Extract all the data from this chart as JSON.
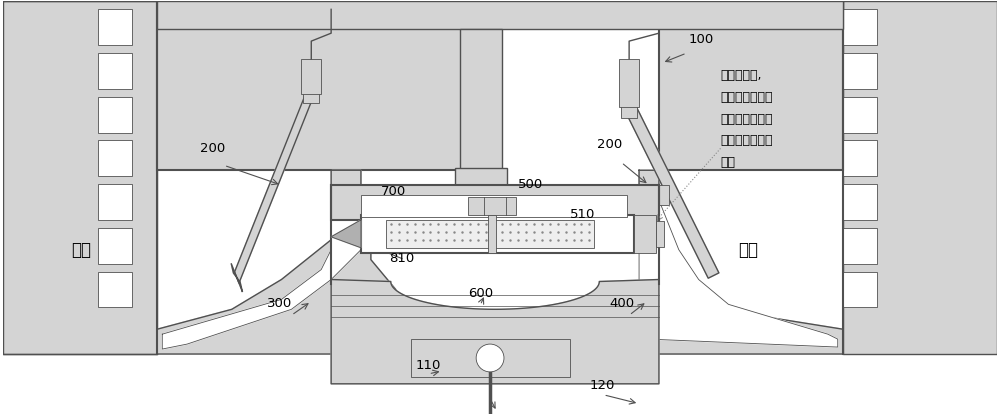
{
  "bg_color": "#ffffff",
  "lc": "#505050",
  "lc_thin": "#707070",
  "fill_gray": "#d4d4d4",
  "fill_white": "#ffffff",
  "fill_dotted_bg": "#f5f5f5",
  "fig_width": 10.0,
  "fig_height": 4.15,
  "dpi": 100,
  "annotation_text": [
    "怠速状态下,",
    "可变压缩活塞的",
    "伸出或缩回至与",
    "燃烧室的结合面",
    "一致"
  ]
}
